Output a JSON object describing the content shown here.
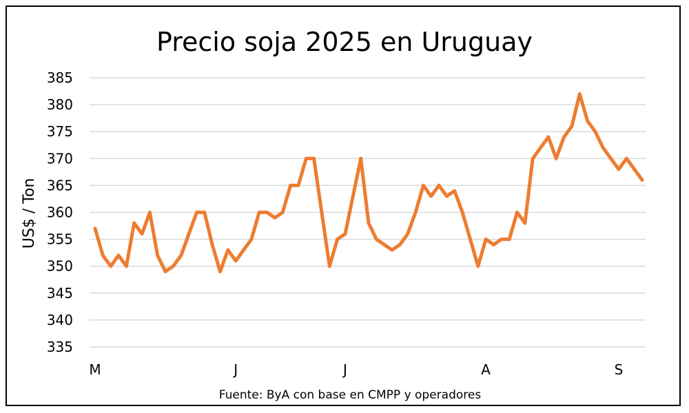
{
  "chart_data": {
    "type": "line",
    "title": "Precio soja 2025 en Uruguay",
    "ylabel": "US$ / Ton",
    "xlabel": "",
    "source": "Fuente: ByA con base en CMPP y operadores",
    "ylim": [
      335,
      385
    ],
    "yticks": [
      "335",
      "340",
      "345",
      "350",
      "355",
      "360",
      "365",
      "370",
      "375",
      "380",
      "385"
    ],
    "month_labels": [
      {
        "label": "M",
        "index": 0
      },
      {
        "label": "J",
        "index": 18
      },
      {
        "label": "J",
        "index": 32
      },
      {
        "label": "A",
        "index": 50
      },
      {
        "label": "S",
        "index": 67
      }
    ],
    "grid": true,
    "legend": "none",
    "series": [
      {
        "color": "#ED7D31",
        "values": [
          357,
          352,
          350,
          352,
          350,
          358,
          356,
          360,
          352,
          349,
          350,
          352,
          356,
          360,
          360,
          354,
          349,
          353,
          351,
          353,
          355,
          360,
          360,
          359,
          360,
          365,
          365,
          370,
          370,
          360,
          350,
          355,
          356,
          363,
          370,
          358,
          355,
          354,
          353,
          354,
          356,
          360,
          365,
          363,
          365,
          363,
          364,
          360,
          355,
          350,
          355,
          354,
          355,
          355,
          360,
          358,
          370,
          372,
          374,
          370,
          374,
          376,
          382,
          377,
          375,
          372,
          370,
          368,
          370,
          368,
          366
        ]
      }
    ]
  }
}
